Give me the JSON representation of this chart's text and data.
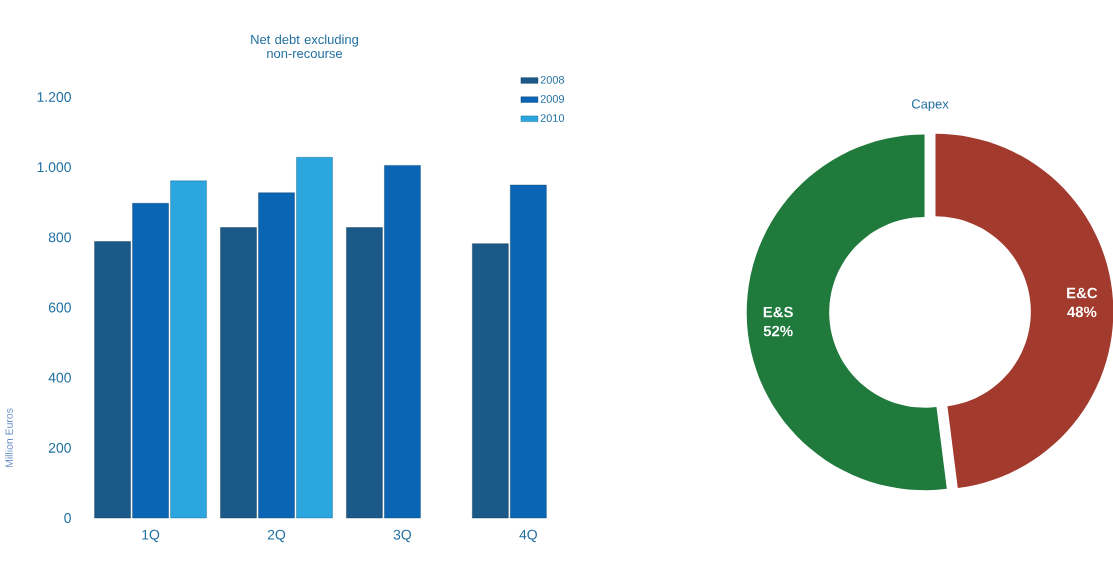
{
  "chart_data": [
    {
      "type": "bar",
      "title": "Net debt excluding non-recourse",
      "ylabel": "Million Euros",
      "categories": [
        "1Q",
        "2Q",
        "3Q",
        "4Q"
      ],
      "series": [
        {
          "name": "2008",
          "color": "#1b5a88",
          "values": [
            788,
            828,
            828,
            782
          ]
        },
        {
          "name": "2009",
          "color": "#0a66b4",
          "values": [
            897,
            927,
            1005,
            949
          ]
        },
        {
          "name": "2010",
          "color": "#2ba6de",
          "values": [
            961,
            1028,
            null,
            null
          ]
        }
      ],
      "ylim": [
        0,
        1200
      ],
      "yticks": [
        0,
        200,
        400,
        600,
        800,
        {
          "value": 1000,
          "label": "1.000"
        },
        {
          "value": 1200,
          "label": "1.200"
        }
      ],
      "legend": "top right",
      "grid": false
    },
    {
      "type": "donut",
      "title": "Capex",
      "categories": [
        "E&C",
        "E&S"
      ],
      "values": [
        48,
        52
      ],
      "colors": [
        "#a33a2e",
        "#1f7a3c"
      ],
      "value_labels": [
        "48%",
        "52%"
      ]
    }
  ]
}
